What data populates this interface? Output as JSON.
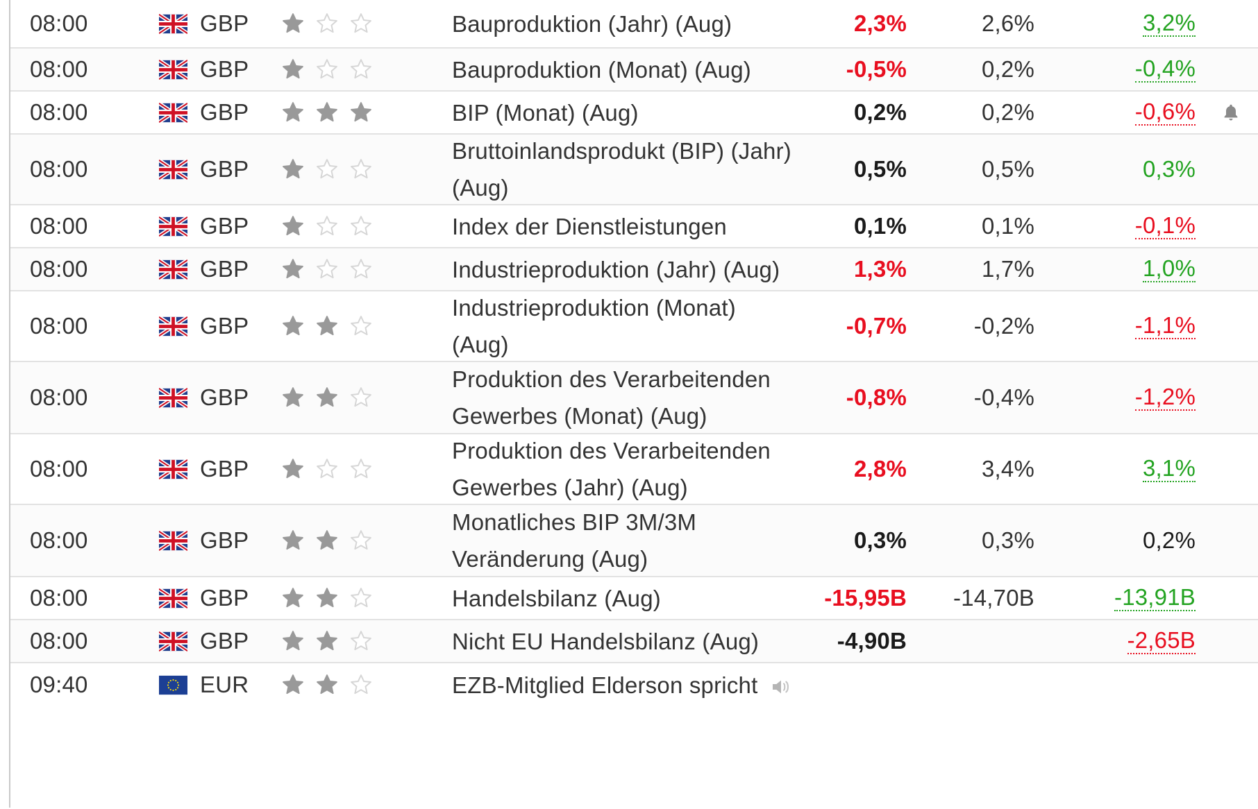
{
  "colors": {
    "worse": "#e80e1f",
    "better": "#23a321",
    "neutral": "#1a1a1a",
    "star_filled": "#999999",
    "star_empty": "#d6d6d6"
  },
  "rows": [
    {
      "time": "08:00",
      "flag": "uk-flag-icon",
      "currency": "GBP",
      "importance": 1,
      "event": "Bauproduktion (Jahr) (Aug)",
      "actual": "2,3%",
      "actual_status": "red",
      "forecast": "2,6%",
      "previous": "3,2%",
      "previous_status": "green",
      "alert": false
    },
    {
      "time": "08:00",
      "flag": "uk-flag-icon",
      "currency": "GBP",
      "importance": 1,
      "event": "Bauproduktion (Monat) (Aug)",
      "actual": "-0,5%",
      "actual_status": "red",
      "forecast": "0,2%",
      "previous": "-0,4%",
      "previous_status": "green",
      "alert": false
    },
    {
      "time": "08:00",
      "flag": "uk-flag-icon",
      "currency": "GBP",
      "importance": 3,
      "event": "BIP (Monat) (Aug)",
      "actual": "0,2%",
      "actual_status": "black",
      "forecast": "0,2%",
      "previous": "-0,6%",
      "previous_status": "red",
      "alert": true
    },
    {
      "time": "08:00",
      "flag": "uk-flag-icon",
      "currency": "GBP",
      "importance": 1,
      "event_lines": [
        "Bruttoinlandsprodukt (BIP) (Jahr)",
        "(Aug)"
      ],
      "actual": "0,5%",
      "actual_status": "black",
      "forecast": "0,5%",
      "previous": "0,3%",
      "previous_status": "green-plain",
      "alert": false
    },
    {
      "time": "08:00",
      "flag": "uk-flag-icon",
      "currency": "GBP",
      "importance": 1,
      "event": "Index der Dienstleistungen",
      "actual": "0,1%",
      "actual_status": "black",
      "forecast": "0,1%",
      "previous": "-0,1%",
      "previous_status": "red",
      "alert": false
    },
    {
      "time": "08:00",
      "flag": "uk-flag-icon",
      "currency": "GBP",
      "importance": 1,
      "event": "Industrieproduktion (Jahr) (Aug)",
      "actual": "1,3%",
      "actual_status": "red",
      "forecast": "1,7%",
      "previous": "1,0%",
      "previous_status": "green",
      "alert": false
    },
    {
      "time": "08:00",
      "flag": "uk-flag-icon",
      "currency": "GBP",
      "importance": 2,
      "event_lines": [
        "Industrieproduktion (Monat)",
        "(Aug)"
      ],
      "actual": "-0,7%",
      "actual_status": "red",
      "forecast": "-0,2%",
      "previous": "-1,1%",
      "previous_status": "red",
      "alert": false
    },
    {
      "time": "08:00",
      "flag": "uk-flag-icon",
      "currency": "GBP",
      "importance": 2,
      "event_lines": [
        "Produktion des Verarbeitenden",
        "Gewerbes (Monat) (Aug)"
      ],
      "actual": "-0,8%",
      "actual_status": "red",
      "forecast": "-0,4%",
      "previous": "-1,2%",
      "previous_status": "red",
      "alert": false
    },
    {
      "time": "08:00",
      "flag": "uk-flag-icon",
      "currency": "GBP",
      "importance": 1,
      "event_lines": [
        "Produktion des Verarbeitenden",
        "Gewerbes (Jahr) (Aug)"
      ],
      "actual": "2,8%",
      "actual_status": "red",
      "forecast": "3,4%",
      "previous": "3,1%",
      "previous_status": "green",
      "alert": false
    },
    {
      "time": "08:00",
      "flag": "uk-flag-icon",
      "currency": "GBP",
      "importance": 2,
      "event_lines": [
        "Monatliches BIP 3M/3M",
        "Veränderung (Aug)"
      ],
      "actual": "0,3%",
      "actual_status": "black",
      "forecast": "0,3%",
      "previous": "0,2%",
      "previous_status": "black-plain",
      "alert": false
    },
    {
      "time": "08:00",
      "flag": "uk-flag-icon",
      "currency": "GBP",
      "importance": 2,
      "event": "Handelsbilanz (Aug)",
      "actual": "-15,95B",
      "actual_status": "red",
      "forecast": "-14,70B",
      "previous": "-13,91B",
      "previous_status": "green",
      "alert": false
    },
    {
      "time": "08:00",
      "flag": "uk-flag-icon",
      "currency": "GBP",
      "importance": 2,
      "event": "Nicht EU Handelsbilanz (Aug)",
      "actual": "-4,90B",
      "actual_status": "black",
      "forecast": "",
      "previous": "-2,65B",
      "previous_status": "red",
      "alert": false
    },
    {
      "time": "09:40",
      "flag": "eu-flag-icon",
      "currency": "EUR",
      "importance": 2,
      "event": "EZB-Mitglied Elderson spricht",
      "speech": true,
      "actual": "",
      "actual_status": "black",
      "forecast": "",
      "previous": "",
      "previous_status": "black",
      "alert": false
    }
  ]
}
